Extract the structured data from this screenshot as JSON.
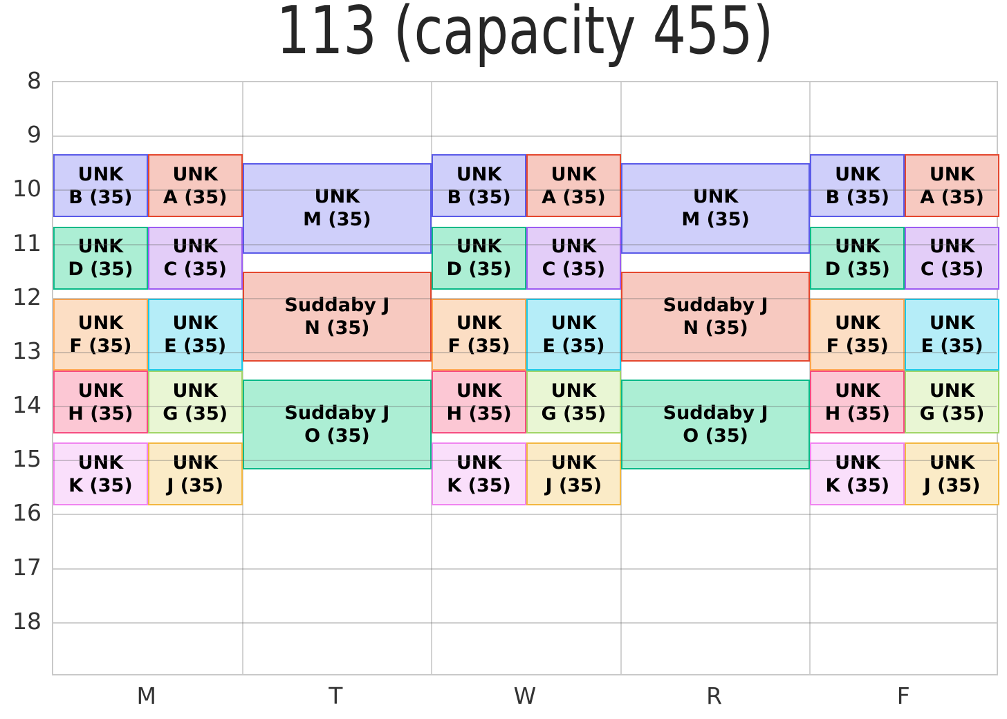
{
  "title": "113 (capacity 455)",
  "colors": {
    "grid": "#cccccc",
    "plot_border": "#c9c9c9",
    "tick_text": "#333333",
    "title_text": "#262626",
    "block_text": "#000000"
  },
  "chart_data": {
    "type": "bar",
    "variant": "weekly-room-timetable",
    "title": "113 (capacity 455)",
    "room": "113",
    "capacity": 455,
    "grid": true,
    "x_ticklabels": [
      "M",
      "T",
      "W",
      "R",
      "F"
    ],
    "y_ticks": [
      8,
      9,
      10,
      11,
      12,
      13,
      14,
      15,
      16,
      17,
      18
    ],
    "y_range": [
      8,
      19
    ],
    "y_inverted": true,
    "events": [
      {
        "id": "B",
        "days": [
          "M",
          "W",
          "F"
        ],
        "half": "left",
        "start": 9.333,
        "end": 10.5,
        "label": "UNK",
        "sublabel": "B (35)",
        "seats": 35,
        "fill": "#cfcffa",
        "edge": "#5a5ae8"
      },
      {
        "id": "A",
        "days": [
          "M",
          "W",
          "F"
        ],
        "half": "right",
        "start": 9.333,
        "end": 10.5,
        "label": "UNK",
        "sublabel": "A (35)",
        "seats": 35,
        "fill": "#f7c9c0",
        "edge": "#e4472e"
      },
      {
        "id": "D",
        "days": [
          "M",
          "W",
          "F"
        ],
        "half": "left",
        "start": 10.667,
        "end": 11.833,
        "label": "UNK",
        "sublabel": "D (35)",
        "seats": 35,
        "fill": "#aceed4",
        "edge": "#0ab988"
      },
      {
        "id": "C",
        "days": [
          "M",
          "W",
          "F"
        ],
        "half": "right",
        "start": 10.667,
        "end": 11.833,
        "label": "UNK",
        "sublabel": "C (35)",
        "seats": 35,
        "fill": "#e3cdf8",
        "edge": "#9c5cf2"
      },
      {
        "id": "F",
        "days": [
          "M",
          "W",
          "F"
        ],
        "half": "left",
        "start": 12.0,
        "end": 13.333,
        "label": "UNK",
        "sublabel": "F (35)",
        "seats": 35,
        "fill": "#fcdec4",
        "edge": "#ffa74f"
      },
      {
        "id": "E",
        "days": [
          "M",
          "W",
          "F"
        ],
        "half": "right",
        "start": 12.0,
        "end": 13.333,
        "label": "UNK",
        "sublabel": "E (35)",
        "seats": 35,
        "fill": "#b5edf8",
        "edge": "#18c9ea"
      },
      {
        "id": "H",
        "days": [
          "M",
          "W",
          "F"
        ],
        "half": "left",
        "start": 13.333,
        "end": 14.5,
        "label": "UNK",
        "sublabel": "H (35)",
        "seats": 35,
        "fill": "#fcc7d4",
        "edge": "#f64c81"
      },
      {
        "id": "G",
        "days": [
          "M",
          "W",
          "F"
        ],
        "half": "right",
        "start": 13.333,
        "end": 14.5,
        "label": "UNK",
        "sublabel": "G (35)",
        "seats": 35,
        "fill": "#e9f6d4",
        "edge": "#a1d567"
      },
      {
        "id": "K",
        "days": [
          "M",
          "W",
          "F"
        ],
        "half": "left",
        "start": 14.667,
        "end": 15.833,
        "label": "UNK",
        "sublabel": "K (35)",
        "seats": 35,
        "fill": "#fadffb",
        "edge": "#f084f0"
      },
      {
        "id": "J",
        "days": [
          "M",
          "W",
          "F"
        ],
        "half": "right",
        "start": 14.667,
        "end": 15.833,
        "label": "UNK",
        "sublabel": "J (35)",
        "seats": 35,
        "fill": "#fbebc7",
        "edge": "#f3b740"
      },
      {
        "id": "M",
        "days": [
          "T",
          "R"
        ],
        "half": "full",
        "start": 9.5,
        "end": 11.167,
        "label": "UNK",
        "sublabel": "M (35)",
        "seats": 35,
        "fill": "#cfcffa",
        "edge": "#5a5ae8"
      },
      {
        "id": "N",
        "days": [
          "T",
          "R"
        ],
        "half": "full",
        "start": 11.5,
        "end": 13.167,
        "label": "Suddaby J",
        "sublabel": "N (35)",
        "seats": 35,
        "fill": "#f7c9c0",
        "edge": "#e4472e"
      },
      {
        "id": "O",
        "days": [
          "T",
          "R"
        ],
        "half": "full",
        "start": 13.5,
        "end": 15.167,
        "label": "Suddaby J",
        "sublabel": "O (35)",
        "seats": 35,
        "fill": "#aceed4",
        "edge": "#0ab988"
      }
    ]
  }
}
